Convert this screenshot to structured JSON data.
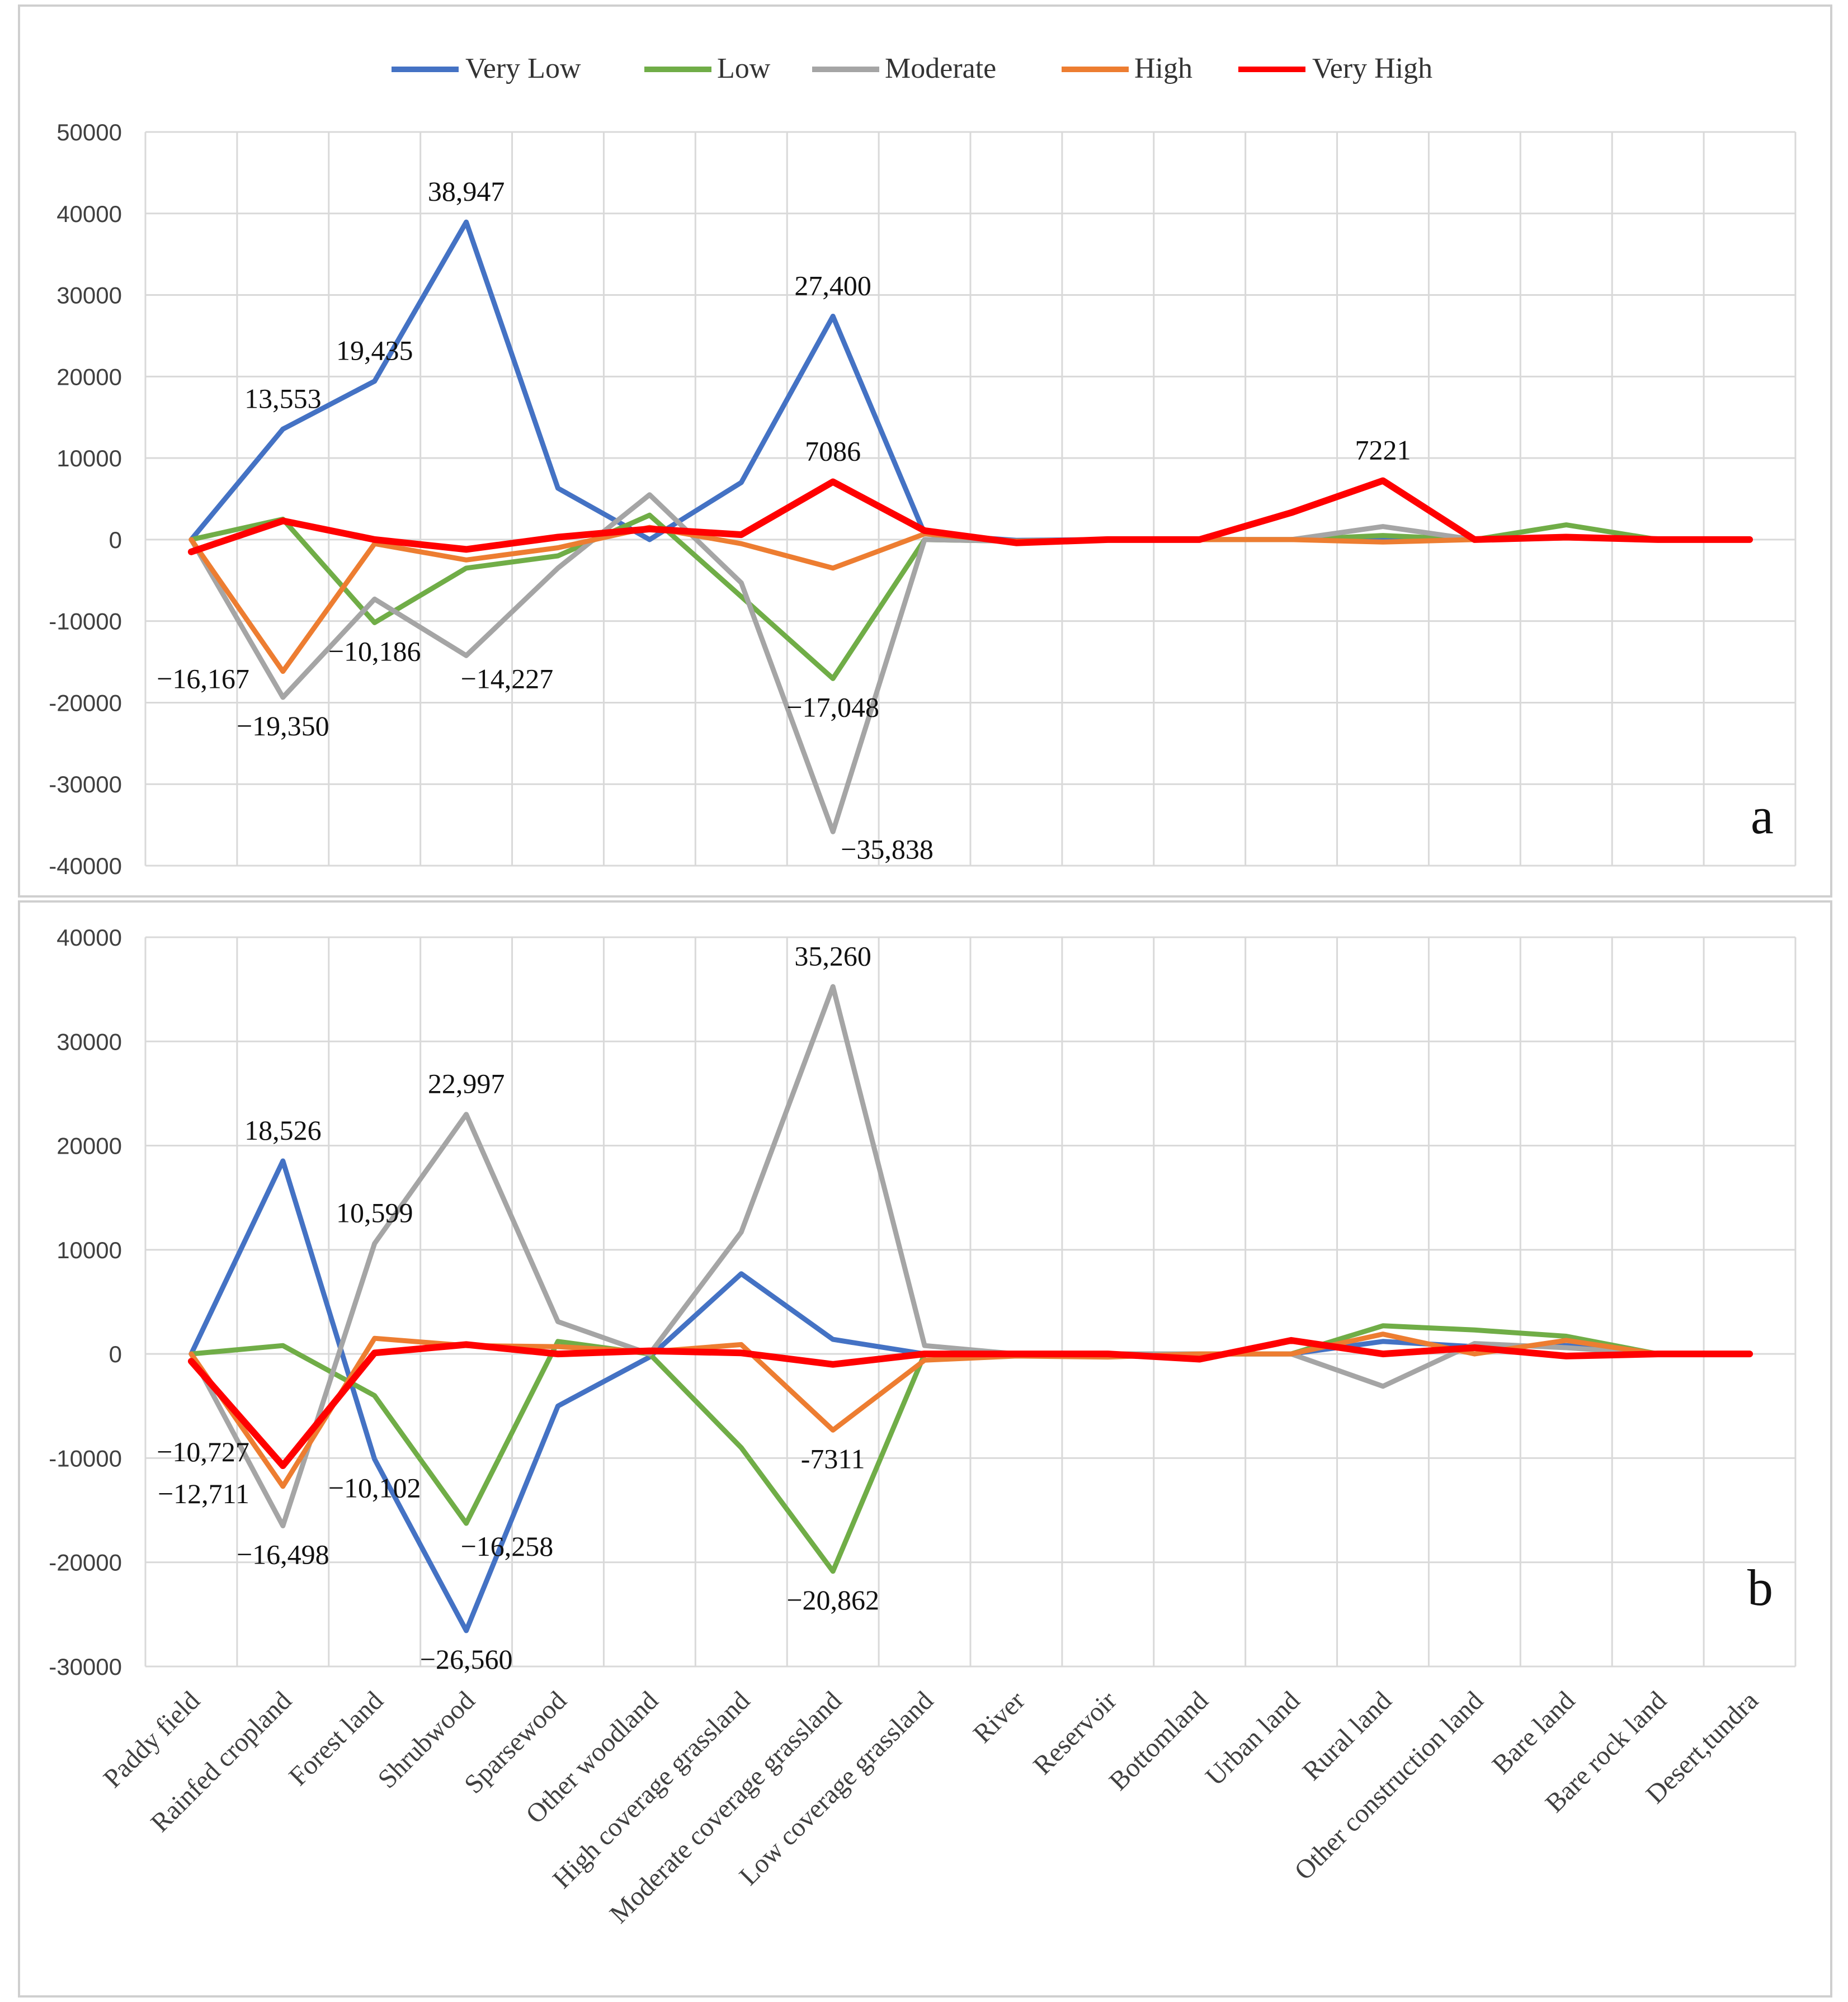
{
  "legend": {
    "entries": [
      "Very Low",
      "Low",
      "Moderate",
      "High",
      "Very High"
    ],
    "colors": [
      "#4472C4",
      "#70AD47",
      "#A5A5A5",
      "#ED7D31",
      "#FF0000"
    ]
  },
  "chart_data": [
    {
      "type": "line",
      "panel_label": "a",
      "categories": [
        "Paddy field",
        "Rainfed cropland",
        "Forest land",
        "Shrubwood",
        "Sparsewood",
        "Other woodland",
        "High coverage grassland",
        "Moderate coverage grassland",
        "Low coverage grassland",
        "River",
        "Reservoir",
        "Bottomland",
        "Urban land",
        "Rural land",
        "Other construction land",
        "Bare land",
        "Bare rock land",
        "Desert,tundra"
      ],
      "ylim": [
        -40000,
        50000
      ],
      "yticks": [
        -40000,
        -30000,
        -20000,
        -10000,
        0,
        10000,
        20000,
        30000,
        40000,
        50000
      ],
      "ytick_labels": [
        "-40000",
        "-30000",
        "-20000",
        "-10000",
        "0",
        "10000",
        "20000",
        "30000",
        "40000",
        "50000"
      ],
      "grid": true,
      "legend_position": "top-center",
      "series": [
        {
          "name": "Very Low",
          "values": [
            0,
            13553,
            19435,
            38947,
            6300,
            0,
            7000,
            27400,
            700,
            -100,
            0,
            0,
            0,
            0,
            0,
            300,
            0,
            0
          ]
        },
        {
          "name": "Low",
          "values": [
            0,
            2500,
            -10186,
            -3500,
            -2000,
            3000,
            -7000,
            -17048,
            0,
            -200,
            0,
            0,
            0,
            500,
            0,
            1800,
            0,
            0
          ]
        },
        {
          "name": "Moderate",
          "values": [
            0,
            -19350,
            -7300,
            -14227,
            -3500,
            5500,
            -5300,
            -35838,
            0,
            -200,
            0,
            0,
            0,
            1600,
            0,
            300,
            0,
            0
          ]
        },
        {
          "name": "High",
          "values": [
            0,
            -16167,
            -500,
            -2500,
            -1000,
            1500,
            -500,
            -3500,
            700,
            -200,
            0,
            0,
            0,
            -300,
            0,
            200,
            0,
            0
          ]
        },
        {
          "name": "Very High",
          "values": [
            -1500,
            2300,
            0,
            -1200,
            300,
            1300,
            600,
            7086,
            1100,
            -400,
            0,
            0,
            3300,
            7221,
            0,
            300,
            0,
            0
          ]
        }
      ],
      "annotations": [
        {
          "text": "13,553",
          "series": "Very Low",
          "index": 1,
          "pos": "above"
        },
        {
          "text": "19,435",
          "series": "Very Low",
          "index": 2,
          "pos": "above"
        },
        {
          "text": "38,947",
          "series": "Very Low",
          "index": 3,
          "pos": "above"
        },
        {
          "text": "27,400",
          "series": "Very Low",
          "index": 7,
          "pos": "above"
        },
        {
          "text": "7086",
          "series": "Very High",
          "index": 7,
          "pos": "above"
        },
        {
          "text": "7221",
          "series": "Very High",
          "index": 13,
          "pos": "above"
        },
        {
          "text": "−16,167",
          "series": "High",
          "index": 1,
          "pos": "left"
        },
        {
          "text": "−19,350",
          "series": "Moderate",
          "index": 1,
          "pos": "below"
        },
        {
          "text": "−10,186",
          "series": "Low",
          "index": 2,
          "pos": "below"
        },
        {
          "text": "−14,227",
          "series": "Moderate",
          "index": 3,
          "pos": "below-right"
        },
        {
          "text": "−17,048",
          "series": "Low",
          "index": 7,
          "pos": "below"
        },
        {
          "text": "−35,838",
          "series": "Moderate",
          "index": 7,
          "pos": "right"
        }
      ]
    },
    {
      "type": "line",
      "panel_label": "b",
      "categories": [
        "Paddy field",
        "Rainfed cropland",
        "Forest land",
        "Shrubwood",
        "Sparsewood",
        "Other woodland",
        "High coverage grassland",
        "Moderate coverage grassland",
        "Low coverage grassland",
        "River",
        "Reservoir",
        "Bottomland",
        "Urban land",
        "Rural land",
        "Other construction land",
        "Bare land",
        "Bare rock land",
        "Desert,tundra"
      ],
      "ylim": [
        -30000,
        40000
      ],
      "yticks": [
        -30000,
        -20000,
        -10000,
        0,
        10000,
        20000,
        30000,
        40000
      ],
      "ytick_labels": [
        "-30000",
        "-20000",
        "-10000",
        "0",
        "10000",
        "20000",
        "30000",
        "40000"
      ],
      "grid": true,
      "series": [
        {
          "name": "Very Low",
          "values": [
            0,
            18526,
            -10102,
            -26560,
            -5000,
            -300,
            7700,
            1400,
            0,
            0,
            -100,
            0,
            0,
            1200,
            700,
            800,
            0,
            0
          ]
        },
        {
          "name": "Low",
          "values": [
            0,
            800,
            -4000,
            -16258,
            1200,
            0,
            -9000,
            -20862,
            0,
            0,
            0,
            0,
            0,
            2700,
            2300,
            1700,
            0,
            0
          ]
        },
        {
          "name": "Moderate",
          "values": [
            0,
            -16498,
            10599,
            22997,
            3100,
            0,
            11700,
            35260,
            800,
            0,
            0,
            0,
            0,
            -3100,
            1000,
            600,
            0,
            0
          ]
        },
        {
          "name": "High",
          "values": [
            0,
            -12711,
            1500,
            800,
            700,
            200,
            900,
            -7311,
            -600,
            -200,
            -300,
            0,
            0,
            1900,
            0,
            1300,
            0,
            0
          ]
        },
        {
          "name": "Very High",
          "values": [
            -700,
            -10727,
            100,
            900,
            0,
            300,
            100,
            -1000,
            0,
            0,
            0,
            -500,
            1300,
            0,
            600,
            -200,
            0,
            0
          ]
        }
      ],
      "annotations": [
        {
          "text": "18,526",
          "series": "Very Low",
          "index": 1,
          "pos": "above"
        },
        {
          "text": "10,599",
          "series": "Moderate",
          "index": 2,
          "pos": "above"
        },
        {
          "text": "22,997",
          "series": "Moderate",
          "index": 3,
          "pos": "above"
        },
        {
          "text": "35,260",
          "series": "Moderate",
          "index": 7,
          "pos": "above"
        },
        {
          "text": "−10,727",
          "series": "Very High",
          "index": 1,
          "pos": "left-high"
        },
        {
          "text": "−12,711",
          "series": "High",
          "index": 1,
          "pos": "left"
        },
        {
          "text": "−16,498",
          "series": "Moderate",
          "index": 1,
          "pos": "below"
        },
        {
          "text": "−10,102",
          "series": "Very Low",
          "index": 2,
          "pos": "below"
        },
        {
          "text": "−16,258",
          "series": "Low",
          "index": 3,
          "pos": "below-right"
        },
        {
          "text": "−26,560",
          "series": "Very Low",
          "index": 3,
          "pos": "below"
        },
        {
          "text": "-7311",
          "series": "High",
          "index": 7,
          "pos": "below"
        },
        {
          "text": "−20,862",
          "series": "Low",
          "index": 7,
          "pos": "below"
        }
      ]
    }
  ]
}
